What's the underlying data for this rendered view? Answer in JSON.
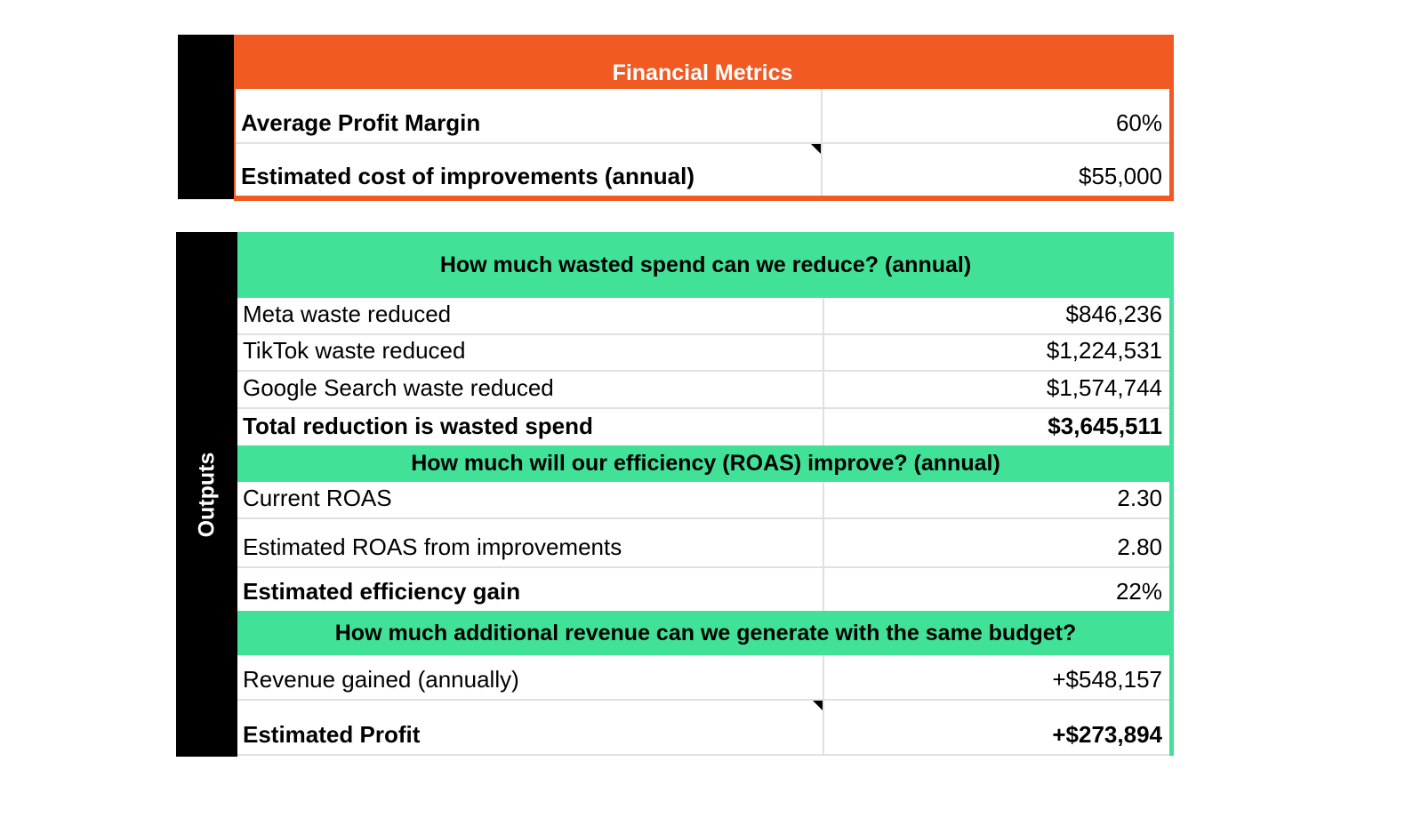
{
  "financial": {
    "title": "Financial Metrics",
    "rows": [
      {
        "label": "Average Profit Margin",
        "value": "60%"
      },
      {
        "label": "Estimated cost of improvements (annual)",
        "value": "$55,000"
      }
    ]
  },
  "outputs": {
    "side_label": "Outputs",
    "sections": [
      {
        "title": "How much wasted spend can we reduce? (annual)",
        "rows": [
          {
            "label": "Meta waste reduced",
            "value": "$846,236"
          },
          {
            "label": "TikTok waste reduced",
            "value": "$1,224,531"
          },
          {
            "label": "Google Search waste reduced",
            "value": "$1,574,744"
          },
          {
            "label": "Total reduction is wasted spend",
            "value": "$3,645,511"
          }
        ]
      },
      {
        "title": "How much will our efficiency (ROAS) improve? (annual)",
        "rows": [
          {
            "label": "Current ROAS",
            "value": "2.30"
          },
          {
            "label": "Estimated ROAS from improvements",
            "value": "2.80"
          },
          {
            "label": "Estimated efficiency gain",
            "value": "22%"
          }
        ]
      },
      {
        "title": "How much additional revenue can we generate with the same budget?",
        "rows": [
          {
            "label": "Revenue gained (annually)",
            "value": "+$548,157"
          },
          {
            "label": "Estimated Profit",
            "value": "+$273,894"
          }
        ]
      }
    ]
  },
  "colors": {
    "financial_header": "#f15a22",
    "outputs_header": "#41e298",
    "side_bar": "#000000"
  }
}
